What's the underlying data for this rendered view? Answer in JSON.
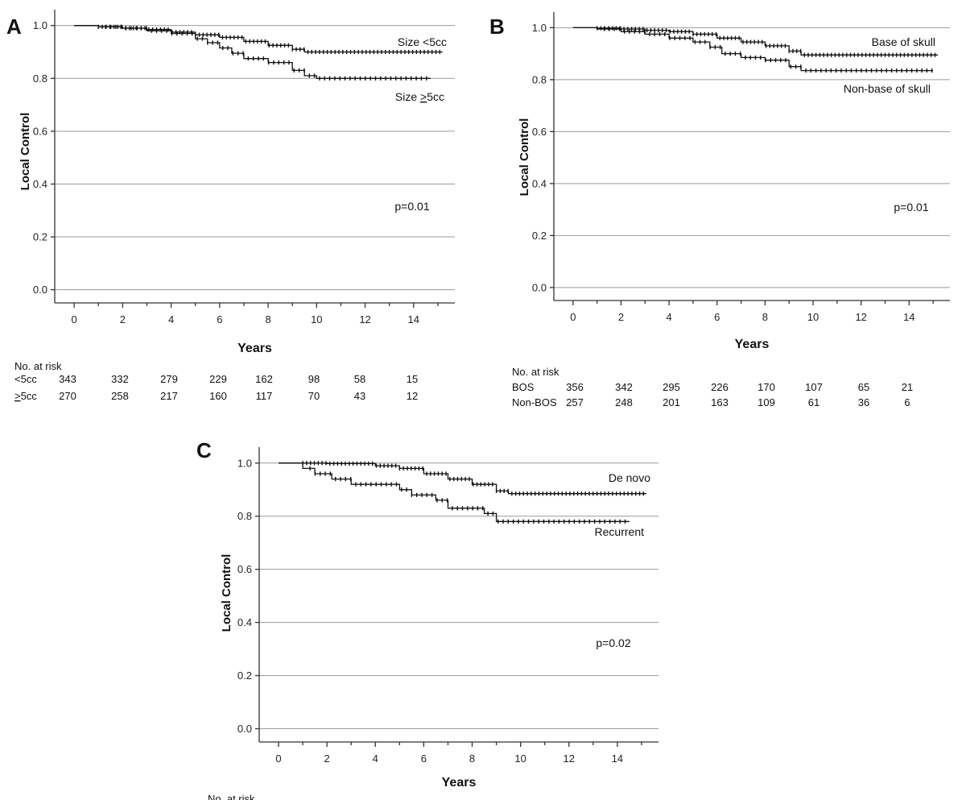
{
  "chart_data": [
    {
      "type": "line",
      "panel": "A",
      "title": "",
      "xlabel": "Years",
      "ylabel": "Local Control",
      "xlim": [
        -0.8,
        15.7
      ],
      "ylim": [
        -0.05,
        1.06
      ],
      "xticks": [
        0,
        2,
        4,
        6,
        8,
        10,
        12,
        14
      ],
      "xtick_labels": [
        "0",
        "2",
        "4",
        "6",
        "8",
        "10",
        "12",
        "14"
      ],
      "yticks": [
        0.0,
        0.2,
        0.4,
        0.6,
        0.8,
        1.0
      ],
      "ytick_labels": [
        "0.0",
        "0.2",
        "0.4",
        "0.6",
        "0.8",
        "1.0"
      ],
      "pvalue": "p=0.01",
      "series": [
        {
          "name": "Size <5cc",
          "label": "Size <5cc",
          "x": [
            0,
            1.0,
            2.0,
            3.0,
            4.0,
            5.0,
            6.0,
            7.0,
            8.0,
            9.0,
            9.5,
            15.2
          ],
          "y": [
            1.0,
            0.995,
            0.99,
            0.985,
            0.975,
            0.965,
            0.955,
            0.94,
            0.925,
            0.91,
            0.9,
            0.9
          ]
        },
        {
          "name": "Size >5cc",
          "label_prefix": "Size ",
          "label_underlined": ">",
          "label_suffix": "5cc",
          "x": [
            0,
            1.0,
            2.0,
            3.0,
            4.0,
            5.0,
            5.5,
            6.0,
            6.5,
            7.0,
            8.0,
            9.0,
            9.5,
            10.0,
            14.7
          ],
          "y": [
            1.0,
            0.995,
            0.99,
            0.98,
            0.97,
            0.95,
            0.935,
            0.915,
            0.895,
            0.875,
            0.86,
            0.83,
            0.81,
            0.8,
            0.8
          ]
        }
      ],
      "risk_table": {
        "header": "No. at risk",
        "times": [
          0,
          2,
          4,
          6,
          8,
          10,
          12,
          14
        ],
        "rows": [
          {
            "label": "<5cc",
            "values": [
              "343",
              "332",
              "279",
              "229",
              "162",
              "98",
              "58",
              "15"
            ]
          },
          {
            "label_underlined": ">",
            "label_rest": "5cc",
            "values": [
              "270",
              "258",
              "217",
              "160",
              "117",
              "70",
              "43",
              "12"
            ]
          }
        ]
      }
    },
    {
      "type": "line",
      "panel": "B",
      "title": "",
      "xlabel": "Years",
      "ylabel": "Local Control",
      "xlim": [
        -0.8,
        15.7
      ],
      "ylim": [
        -0.05,
        1.06
      ],
      "xticks": [
        0,
        2,
        4,
        6,
        8,
        10,
        12,
        14
      ],
      "xtick_labels": [
        "0",
        "2",
        "4",
        "6",
        "8",
        "10",
        "12",
        "14"
      ],
      "yticks": [
        0.0,
        0.2,
        0.4,
        0.6,
        0.8,
        1.0
      ],
      "ytick_labels": [
        "0.0",
        "0.2",
        "0.4",
        "0.6",
        "0.8",
        "1.0"
      ],
      "pvalue": "p=0.01",
      "series": [
        {
          "name": "Base of skull",
          "label": "Base of skull",
          "x": [
            0,
            1.0,
            2.0,
            3.0,
            4.0,
            5.0,
            6.0,
            7.0,
            8.0,
            9.0,
            9.5,
            15.2
          ],
          "y": [
            1.0,
            0.998,
            0.995,
            0.99,
            0.985,
            0.975,
            0.96,
            0.945,
            0.93,
            0.91,
            0.895,
            0.895
          ]
        },
        {
          "name": "Non-base of skull",
          "label": "Non-base of skull",
          "x": [
            0,
            1.0,
            2.0,
            3.0,
            4.0,
            5.0,
            5.7,
            6.2,
            7.0,
            8.0,
            9.0,
            9.5,
            15.0
          ],
          "y": [
            1.0,
            0.995,
            0.985,
            0.975,
            0.96,
            0.945,
            0.925,
            0.9,
            0.885,
            0.875,
            0.85,
            0.835,
            0.835
          ]
        }
      ],
      "risk_table": {
        "header": "No. at risk",
        "times": [
          0,
          2,
          4,
          6,
          8,
          10,
          12,
          14
        ],
        "rows": [
          {
            "label": "BOS",
            "values": [
              "356",
              "342",
              "295",
              "226",
              "170",
              "107",
              "65",
              "21"
            ]
          },
          {
            "label": "Non-BOS",
            "values": [
              "257",
              "248",
              "201",
              "163",
              "109",
              "61",
              "36",
              "6"
            ]
          }
        ]
      }
    },
    {
      "type": "line",
      "panel": "C",
      "title": "",
      "xlabel": "Years",
      "ylabel": "Local Control",
      "xlim": [
        -0.8,
        15.7
      ],
      "ylim": [
        -0.05,
        1.06
      ],
      "xticks": [
        0,
        2,
        4,
        6,
        8,
        10,
        12,
        14
      ],
      "xtick_labels": [
        "0",
        "2",
        "4",
        "6",
        "8",
        "10",
        "12",
        "14"
      ],
      "yticks": [
        0.0,
        0.2,
        0.4,
        0.6,
        0.8,
        1.0
      ],
      "ytick_labels": [
        "0.0",
        "0.2",
        "0.4",
        "0.6",
        "0.8",
        "1.0"
      ],
      "pvalue": "p=0.02",
      "series": [
        {
          "name": "De novo",
          "label": "De novo",
          "x": [
            0,
            2.0,
            4.0,
            5.0,
            6.0,
            7.0,
            8.0,
            9.0,
            9.5,
            15.2
          ],
          "y": [
            1.0,
            0.998,
            0.99,
            0.98,
            0.96,
            0.94,
            0.92,
            0.895,
            0.885,
            0.885
          ]
        },
        {
          "name": "Recurrent",
          "label": "Recurrent",
          "x": [
            0,
            1.0,
            1.5,
            2.2,
            3.0,
            5.0,
            5.5,
            6.5,
            7.0,
            8.5,
            9.0,
            14.5
          ],
          "y": [
            1.0,
            0.98,
            0.96,
            0.94,
            0.92,
            0.9,
            0.88,
            0.86,
            0.83,
            0.81,
            0.78,
            0.78
          ]
        }
      ],
      "risk_table": {
        "header": "No. at risk"
      }
    }
  ]
}
